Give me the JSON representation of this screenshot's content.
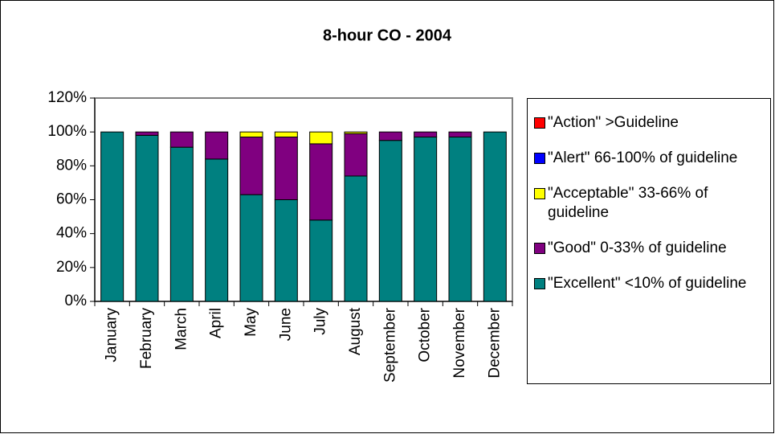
{
  "chart_data": {
    "type": "stacked-bar",
    "title": "8-hour CO - 2004",
    "categories": [
      "January",
      "February",
      "March",
      "April",
      "May",
      "June",
      "July",
      "August",
      "September",
      "October",
      "November",
      "December"
    ],
    "series": [
      {
        "name": "\"Excellent\" <10% of guideline",
        "color": "#008080",
        "values": [
          100,
          98,
          91,
          84,
          63,
          60,
          48,
          74,
          95,
          97,
          97,
          100
        ]
      },
      {
        "name": "\"Good\" 0-33% of guideline",
        "color": "#800080",
        "values": [
          0,
          2,
          9,
          16,
          34,
          37,
          45,
          25,
          5,
          3,
          3,
          0
        ]
      },
      {
        "name": "\"Acceptable\" 33-66% of guideline",
        "color": "#ffff00",
        "values": [
          0,
          0,
          0,
          0,
          3,
          3,
          7,
          1,
          0,
          0,
          0,
          0
        ]
      },
      {
        "name": "\"Alert\" 66-100% of guideline",
        "color": "#0000ff",
        "values": [
          0,
          0,
          0,
          0,
          0,
          0,
          0,
          0,
          0,
          0,
          0,
          0
        ]
      },
      {
        "name": "\"Action\" >Guideline",
        "color": "#ff0000",
        "values": [
          0,
          0,
          0,
          0,
          0,
          0,
          0,
          0,
          0,
          0,
          0,
          0
        ]
      }
    ],
    "ylim": [
      0,
      120
    ],
    "yticks": [
      {
        "value": 0,
        "label": "0%"
      },
      {
        "value": 20,
        "label": "20%"
      },
      {
        "value": 40,
        "label": "40%"
      },
      {
        "value": 60,
        "label": "60%"
      },
      {
        "value": 80,
        "label": "80%"
      },
      {
        "value": 100,
        "label": "100%"
      },
      {
        "value": 120,
        "label": "120%"
      }
    ]
  }
}
